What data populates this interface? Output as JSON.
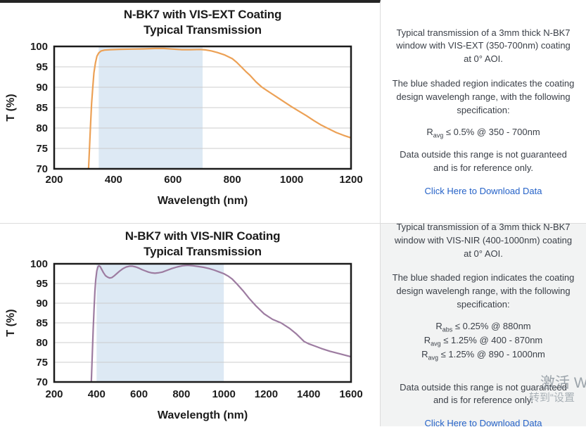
{
  "rows": [
    {
      "panel": {
        "p1": "Typical transmission of a 3mm thick N-BK7 window with VIS-EXT (350-700nm) coating at 0° AOI.",
        "p2": "The blue shaded region indicates the coating design wavelengh range, with the following specification:",
        "specs": [
          {
            "base": "R",
            "sub": "avg",
            "text": " ≤ 0.5% @ 350 - 700nm"
          }
        ],
        "p3": "Data outside this range is not guaranteed and is for reference only.",
        "link": "Click Here to Download Data"
      }
    },
    {
      "panel": {
        "p1": "Typical transmission of a 3mm thick N-BK7 window with VIS-NIR (400-1000nm) coating at 0° AOI.",
        "p2": "The blue shaded region indicates the coating design wavelengh range, with the following specification:",
        "specs": [
          {
            "base": "R",
            "sub": "abs",
            "text": " ≤ 0.25% @ 880nm"
          },
          {
            "base": "R",
            "sub": "avg",
            "text": " ≤ 1.25% @ 400 - 870nm"
          },
          {
            "base": "R",
            "sub": "avg",
            "text": " ≤ 1.25% @ 890 - 1000nm"
          }
        ],
        "p3": "Data outside this range is not guaranteed and is for reference only.",
        "link": "Click Here to Download Data"
      }
    }
  ],
  "watermark": {
    "line1": "激活 W",
    "line2": "转到“设置"
  },
  "chart_data": [
    {
      "type": "line",
      "title": "N-BK7 with VIS-EXT Coating",
      "subtitle": "Typical Transmission",
      "xlabel": "Wavelength (nm)",
      "ylabel": "T (%)",
      "xlim": [
        200,
        1200
      ],
      "ylim": [
        70,
        100
      ],
      "xticks": [
        200,
        400,
        600,
        800,
        1000,
        1200
      ],
      "yticks": [
        70,
        75,
        80,
        85,
        90,
        95,
        100
      ],
      "grid": true,
      "legend": "none",
      "shaded_region": {
        "from": 350,
        "to": 700,
        "color": "#dde9f4",
        "meaning": "coating design wavelength range"
      },
      "line_color": "#eca156",
      "points": [
        [
          310,
          62
        ],
        [
          313,
          66
        ],
        [
          316,
          70.5
        ],
        [
          319,
          75
        ],
        [
          322,
          80
        ],
        [
          326,
          86
        ],
        [
          330,
          90
        ],
        [
          334,
          93.5
        ],
        [
          339,
          96
        ],
        [
          344,
          97.6
        ],
        [
          350,
          98.4
        ],
        [
          358,
          98.9
        ],
        [
          370,
          99.1
        ],
        [
          390,
          99.2
        ],
        [
          420,
          99.3
        ],
        [
          460,
          99.35
        ],
        [
          500,
          99.4
        ],
        [
          540,
          99.5
        ],
        [
          570,
          99.5
        ],
        [
          600,
          99.35
        ],
        [
          630,
          99.2
        ],
        [
          660,
          99.2
        ],
        [
          690,
          99.25
        ],
        [
          710,
          99.15
        ],
        [
          730,
          98.9
        ],
        [
          750,
          98.5
        ],
        [
          775,
          97.9
        ],
        [
          800,
          97.0
        ],
        [
          815,
          96.1
        ],
        [
          830,
          95.0
        ],
        [
          845,
          93.9
        ],
        [
          860,
          92.9
        ],
        [
          880,
          91.3
        ],
        [
          900,
          90.0
        ],
        [
          925,
          88.8
        ],
        [
          950,
          87.6
        ],
        [
          975,
          86.4
        ],
        [
          1000,
          85.2
        ],
        [
          1025,
          84.1
        ],
        [
          1050,
          83.0
        ],
        [
          1075,
          81.8
        ],
        [
          1100,
          80.7
        ],
        [
          1125,
          79.8
        ],
        [
          1150,
          78.9
        ],
        [
          1175,
          78.2
        ],
        [
          1200,
          77.6
        ]
      ]
    },
    {
      "type": "line",
      "title": "N-BK7 with VIS-NIR Coating",
      "subtitle": "Typical Transmission",
      "xlabel": "Wavelength (nm)",
      "ylabel": "T (%)",
      "xlim": [
        200,
        1600
      ],
      "ylim": [
        70,
        100
      ],
      "xticks": [
        200,
        400,
        600,
        800,
        1000,
        1200,
        1400,
        1600
      ],
      "yticks": [
        70,
        75,
        80,
        85,
        90,
        95,
        100
      ],
      "grid": true,
      "legend": "none",
      "shaded_region": {
        "from": 400,
        "to": 1000,
        "color": "#dde9f4",
        "meaning": "coating design wavelength range"
      },
      "line_color": "#9d7ca1",
      "points": [
        [
          368,
          62
        ],
        [
          372,
          66
        ],
        [
          375,
          70
        ],
        [
          378,
          74.5
        ],
        [
          381,
          79
        ],
        [
          384,
          83.5
        ],
        [
          388,
          88.5
        ],
        [
          392,
          93
        ],
        [
          396,
          96
        ],
        [
          401,
          98.2
        ],
        [
          406,
          99.2
        ],
        [
          411,
          99.5
        ],
        [
          417,
          99.3
        ],
        [
          424,
          98.6
        ],
        [
          432,
          97.8
        ],
        [
          442,
          97.0
        ],
        [
          452,
          96.6
        ],
        [
          462,
          96.4
        ],
        [
          472,
          96.5
        ],
        [
          482,
          96.9
        ],
        [
          495,
          97.5
        ],
        [
          510,
          98.2
        ],
        [
          525,
          98.8
        ],
        [
          540,
          99.2
        ],
        [
          555,
          99.4
        ],
        [
          570,
          99.4
        ],
        [
          585,
          99.2
        ],
        [
          600,
          98.9
        ],
        [
          615,
          98.5
        ],
        [
          630,
          98.2
        ],
        [
          645,
          97.9
        ],
        [
          660,
          97.7
        ],
        [
          675,
          97.6
        ],
        [
          690,
          97.7
        ],
        [
          710,
          97.9
        ],
        [
          730,
          98.3
        ],
        [
          755,
          98.8
        ],
        [
          780,
          99.2
        ],
        [
          805,
          99.5
        ],
        [
          830,
          99.6
        ],
        [
          855,
          99.5
        ],
        [
          880,
          99.3
        ],
        [
          905,
          99.1
        ],
        [
          930,
          98.8
        ],
        [
          955,
          98.4
        ],
        [
          980,
          97.9
        ],
        [
          1000,
          97.5
        ],
        [
          1020,
          96.9
        ],
        [
          1040,
          96.1
        ],
        [
          1060,
          95.0
        ],
        [
          1090,
          93.2
        ],
        [
          1120,
          91.2
        ],
        [
          1150,
          89.4
        ],
        [
          1190,
          87.3
        ],
        [
          1230,
          85.9
        ],
        [
          1270,
          85.0
        ],
        [
          1310,
          83.6
        ],
        [
          1340,
          82.3
        ],
        [
          1365,
          81.0
        ],
        [
          1378,
          80.3
        ],
        [
          1400,
          79.7
        ],
        [
          1430,
          79.1
        ],
        [
          1460,
          78.5
        ],
        [
          1500,
          77.8
        ],
        [
          1550,
          77.1
        ],
        [
          1600,
          76.4
        ]
      ]
    }
  ]
}
